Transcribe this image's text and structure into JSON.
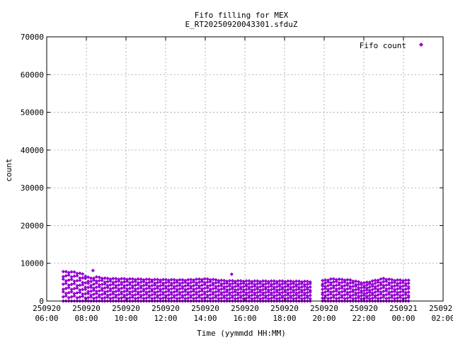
{
  "chart_data": {
    "type": "scatter",
    "title": "Fifo filling for MEX",
    "subtitle": "E_RT20250920043301.sfduZ",
    "xlabel": "Time (yymmdd HH:MM)",
    "ylabel": "count",
    "xlim_hours": [
      6,
      26
    ],
    "ylim": [
      0,
      70000
    ],
    "y_ticks": [
      0,
      10000,
      20000,
      30000,
      40000,
      50000,
      60000,
      70000
    ],
    "x_ticks": [
      {
        "date": "250920",
        "time": "06:00"
      },
      {
        "date": "250920",
        "time": "08:00"
      },
      {
        "date": "250920",
        "time": "10:00"
      },
      {
        "date": "250920",
        "time": "12:00"
      },
      {
        "date": "250920",
        "time": "14:00"
      },
      {
        "date": "250920",
        "time": "16:00"
      },
      {
        "date": "250920",
        "time": "18:00"
      },
      {
        "date": "250920",
        "time": "20:00"
      },
      {
        "date": "250920",
        "time": "22:00"
      },
      {
        "date": "250921",
        "time": "00:00"
      },
      {
        "date": "250921",
        "time": "02:00"
      }
    ],
    "grid": true,
    "legend": {
      "label": "Fifo count",
      "position": "top-right"
    },
    "series": [
      {
        "name": "Fifo count",
        "color": "#9400d3",
        "marker": "diamond",
        "segments": [
          {
            "start": "06:50",
            "end": "19:20",
            "max_count": [
              [
                6.9,
                7800
              ],
              [
                7.4,
                7700
              ],
              [
                7.8,
                7200
              ],
              [
                8.2,
                6000
              ],
              [
                8.5,
                6400
              ],
              [
                9.0,
                6000
              ],
              [
                10.0,
                5900
              ],
              [
                11.5,
                5700
              ],
              [
                13.0,
                5600
              ],
              [
                14.0,
                5900
              ],
              [
                15.0,
                5400
              ],
              [
                16.5,
                5300
              ],
              [
                18.0,
                5300
              ],
              [
                19.2,
                5200
              ]
            ]
          },
          {
            "start": "19:55",
            "end": "00:20",
            "max_count": [
              [
                19.9,
                5400
              ],
              [
                20.4,
                5900
              ],
              [
                21.3,
                5600
              ],
              [
                22.0,
                4800
              ],
              [
                22.5,
                5400
              ],
              [
                23.0,
                6000
              ],
              [
                23.5,
                5600
              ],
              [
                24.3,
                5500
              ]
            ]
          }
        ],
        "outliers": [
          {
            "time": "08:20",
            "count": 8100
          },
          {
            "time": "15:20",
            "count": 7100
          }
        ]
      }
    ]
  }
}
